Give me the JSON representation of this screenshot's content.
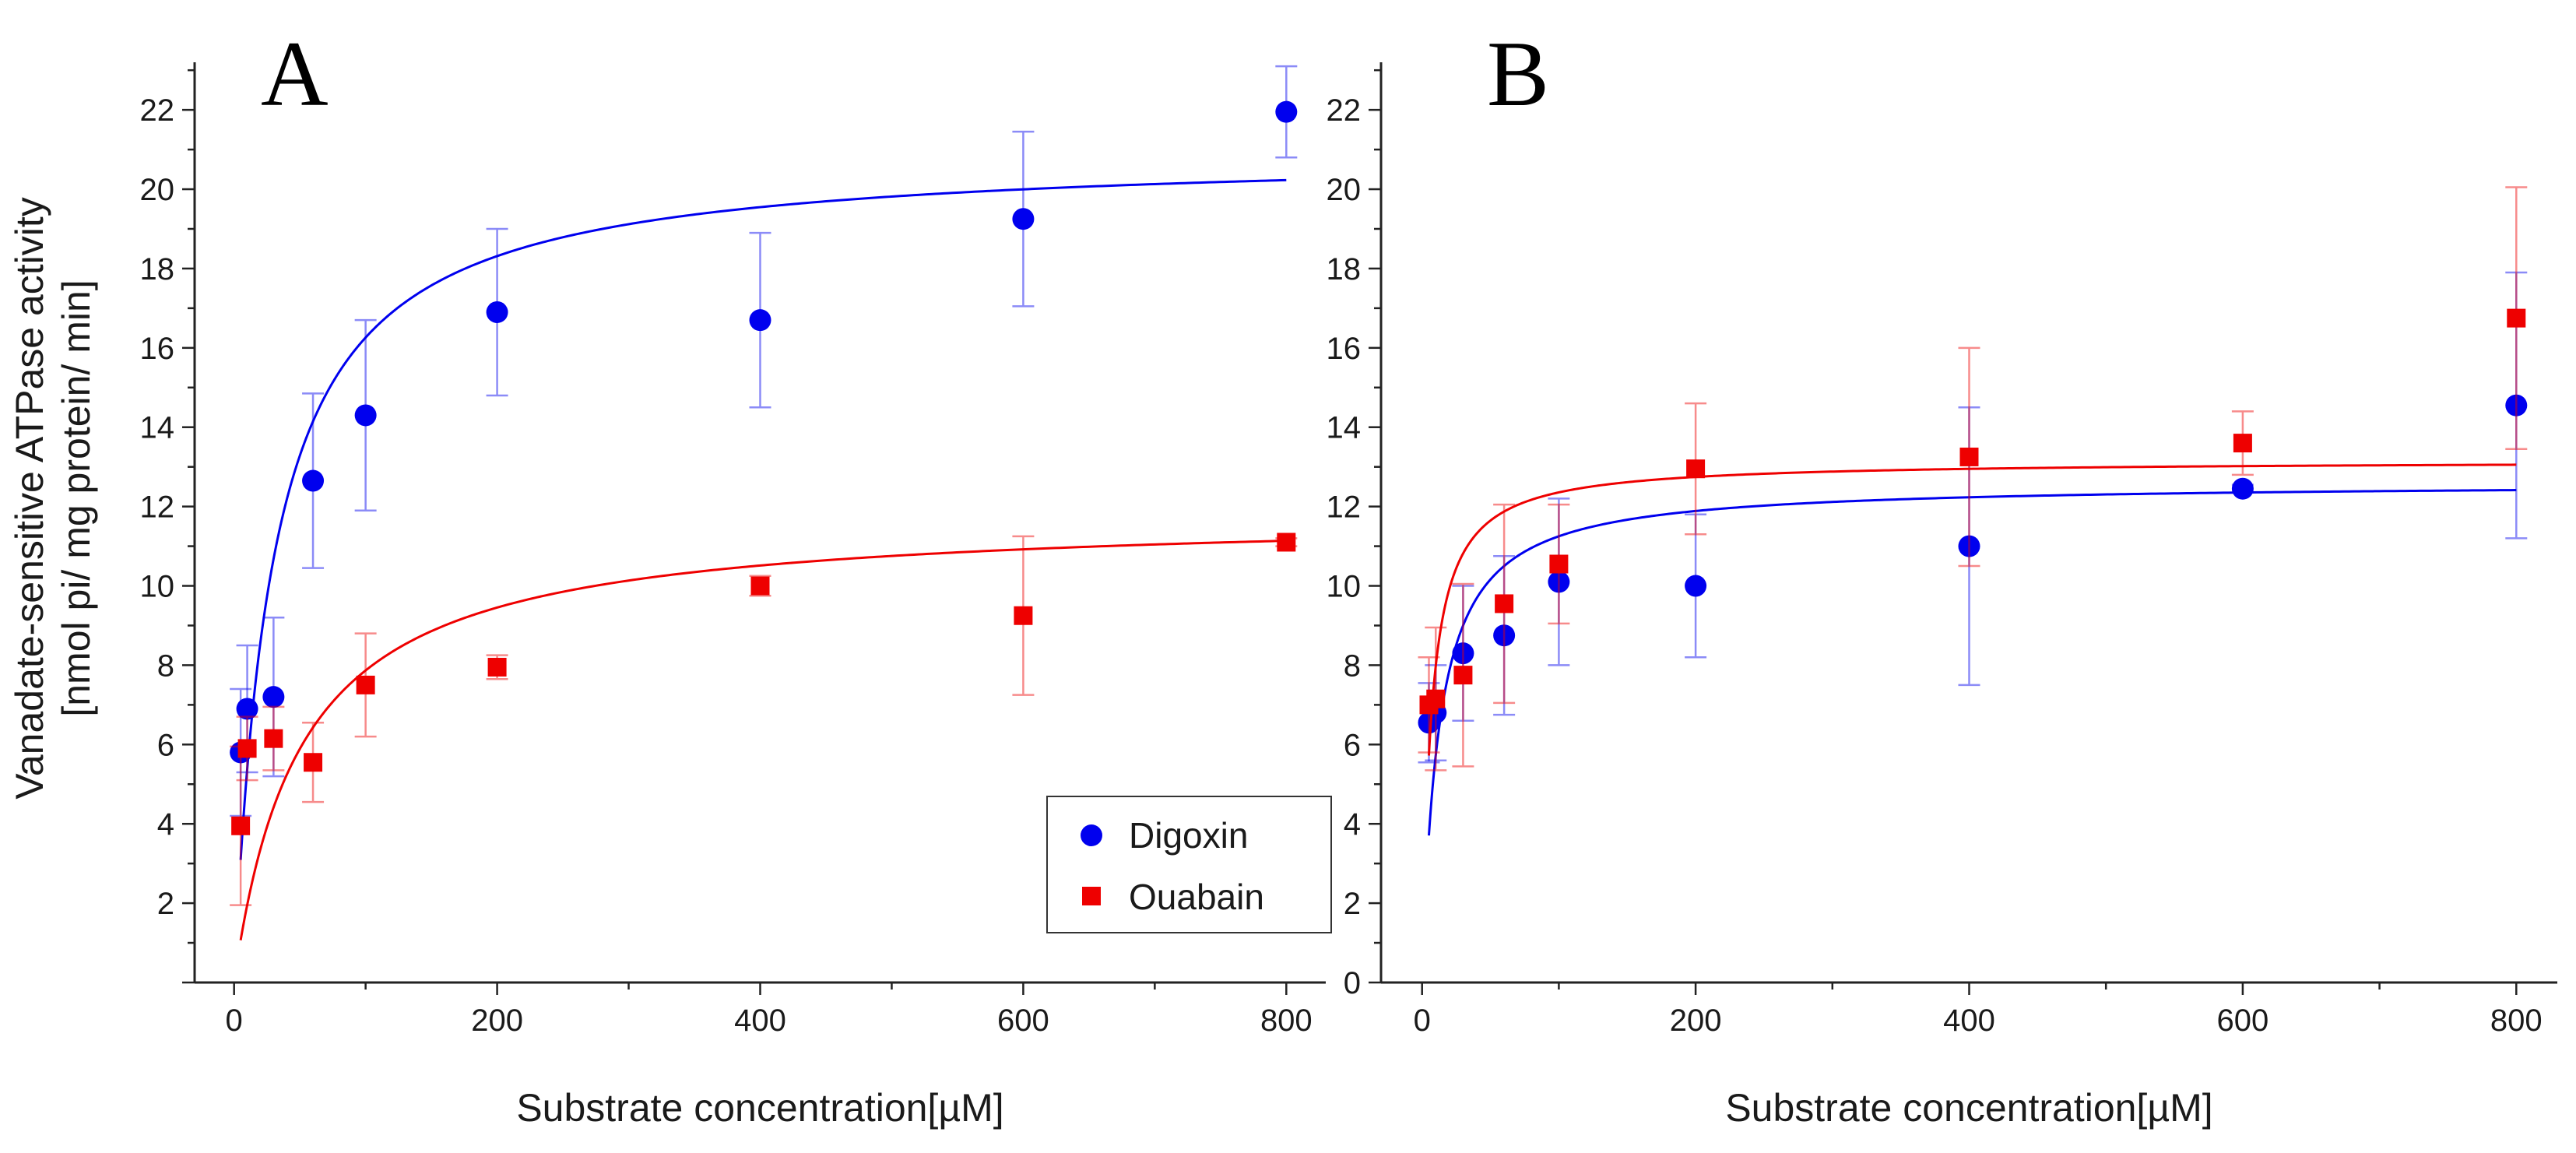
{
  "figure": {
    "ylabel_line1": "Vanadate-sensitive ATPase activity",
    "ylabel_line2": "[nmol pi/ mg protein/ min]"
  },
  "legend": {
    "items": [
      {
        "label": "Digoxin",
        "color": "#0000ee",
        "marker": "circle"
      },
      {
        "label": "Ouabain",
        "color": "#ee0000",
        "marker": "square"
      }
    ]
  },
  "chart_data": [
    {
      "type": "scatter",
      "panel": "A",
      "title": "",
      "xlabel": "Substrate concentration[µM]",
      "ylabel": "Vanadate-sensitive ATPase activity [nmol pi/ mg protein/ min]",
      "xlim": [
        -30,
        830
      ],
      "ylim": [
        0,
        23.2
      ],
      "xticks": [
        0,
        200,
        400,
        600,
        800
      ],
      "yticks": [
        2,
        4,
        6,
        8,
        10,
        12,
        14,
        16,
        18,
        20,
        22
      ],
      "grid": false,
      "legend_position": "bottom-right",
      "series": [
        {
          "name": "Digoxin",
          "color": "#0000ee",
          "marker": "circle",
          "x": [
            5,
            10,
            30,
            60,
            100,
            200,
            400,
            600,
            800
          ],
          "y": [
            5.8,
            6.9,
            7.2,
            12.65,
            14.3,
            16.9,
            16.7,
            19.25,
            21.95
          ],
          "err": [
            1.6,
            1.6,
            2.0,
            2.2,
            2.4,
            2.1,
            2.2,
            2.2,
            1.15
          ],
          "fit": {
            "vmax": 20.96,
            "km": 28.9,
            "x_start": 5,
            "x_end": 800
          }
        },
        {
          "name": "Ouabain",
          "color": "#ee0000",
          "marker": "square",
          "x": [
            5,
            10,
            30,
            60,
            100,
            200,
            400,
            600,
            800
          ],
          "y": [
            3.95,
            5.9,
            6.15,
            5.55,
            7.5,
            7.95,
            10.0,
            9.25,
            11.1
          ],
          "err": [
            2.0,
            0.8,
            0.8,
            1.0,
            1.3,
            0.3,
            0.25,
            2.0,
            0.1
          ],
          "fit": {
            "vmax": 11.84,
            "km": 50.5,
            "x_start": 5,
            "x_end": 800
          }
        }
      ]
    },
    {
      "type": "scatter",
      "panel": "B",
      "title": "",
      "xlabel": "Substrate concentration[µM]",
      "ylabel": "",
      "xlim": [
        -30,
        830
      ],
      "ylim": [
        0,
        23.2
      ],
      "xticks": [
        0,
        200,
        400,
        600,
        800
      ],
      "yticks": [
        0,
        2,
        4,
        6,
        8,
        10,
        12,
        14,
        16,
        18,
        20,
        22
      ],
      "grid": false,
      "legend_position": "none",
      "series": [
        {
          "name": "Digoxin",
          "color": "#0000ee",
          "marker": "circle",
          "x": [
            5,
            10,
            30,
            60,
            100,
            200,
            400,
            600,
            800
          ],
          "y": [
            6.55,
            6.8,
            8.3,
            8.75,
            10.1,
            10.0,
            11.0,
            12.45,
            14.55
          ],
          "err": [
            1.0,
            1.2,
            1.7,
            2.0,
            2.1,
            1.8,
            3.5,
            0.1,
            3.35
          ],
          "fit": {
            "vmax": 12.6,
            "km": 12.0,
            "x_start": 5,
            "x_end": 800
          }
        },
        {
          "name": "Ouabain",
          "color": "#ee0000",
          "marker": "square",
          "x": [
            5,
            10,
            30,
            60,
            100,
            200,
            400,
            600,
            800
          ],
          "y": [
            7.0,
            7.15,
            7.75,
            9.55,
            10.55,
            12.95,
            13.25,
            13.6,
            16.75
          ],
          "err": [
            1.2,
            1.8,
            2.3,
            2.5,
            1.5,
            1.65,
            2.75,
            0.8,
            3.3
          ],
          "fit": {
            "vmax": 13.16,
            "km": 6.5,
            "x_start": 5,
            "x_end": 800
          }
        }
      ]
    }
  ]
}
